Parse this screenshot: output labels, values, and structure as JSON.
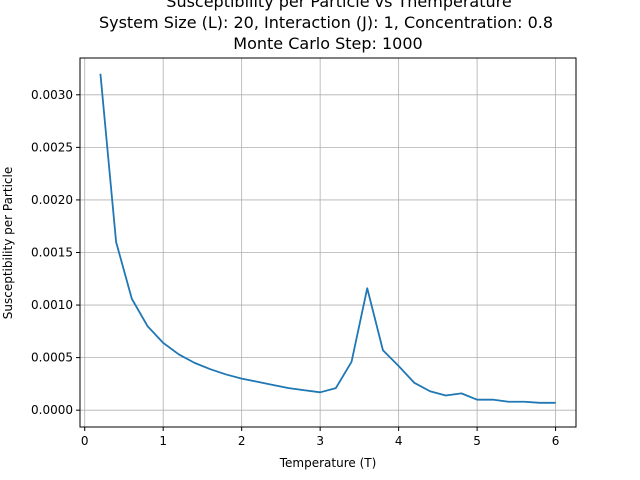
{
  "chart_data": {
    "type": "line",
    "title_lines": [
      "Susceptibility per Particle vs Themperature",
      "System Size (L): 20, Interaction (J): 1, Concentration: 0.8",
      "Monte Carlo Step: 1000"
    ],
    "xlabel": "Temperature (T)",
    "ylabel": "Susceptibility per Particle",
    "xlim": [
      -0.06,
      6.26
    ],
    "ylim": [
      -0.00016,
      0.00335
    ],
    "xticks": [
      0,
      1,
      2,
      3,
      4,
      5,
      6
    ],
    "xtick_labels": [
      "0",
      "1",
      "2",
      "3",
      "4",
      "5",
      "6"
    ],
    "yticks": [
      0.0,
      0.0005,
      0.001,
      0.0015,
      0.002,
      0.0025,
      0.003
    ],
    "ytick_labels": [
      "0.0000",
      "0.0005",
      "0.0010",
      "0.0015",
      "0.0020",
      "0.0025",
      "0.0030"
    ],
    "grid": true,
    "line_color": "#1f77b4",
    "series": [
      {
        "x": [
          0.2,
          0.4,
          0.6,
          0.8,
          1.0,
          1.2,
          1.4,
          1.6,
          1.8,
          2.0,
          2.2,
          2.4,
          2.6,
          2.8,
          3.0,
          3.2,
          3.4,
          3.6,
          3.8,
          4.0,
          4.2,
          4.4,
          4.6,
          4.8,
          5.0,
          5.2,
          5.4,
          5.6,
          5.8,
          6.0
        ],
        "values": [
          0.0032,
          0.0016,
          0.00106,
          0.0008,
          0.00064,
          0.00053,
          0.00045,
          0.00039,
          0.00034,
          0.0003,
          0.00027,
          0.00024,
          0.00021,
          0.00019,
          0.00017,
          0.00021,
          0.00046,
          0.00116,
          0.00057,
          0.00042,
          0.00026,
          0.00018,
          0.00014,
          0.00016,
          0.0001,
          0.0001,
          8e-05,
          8e-05,
          7e-05,
          7e-05
        ]
      }
    ]
  }
}
